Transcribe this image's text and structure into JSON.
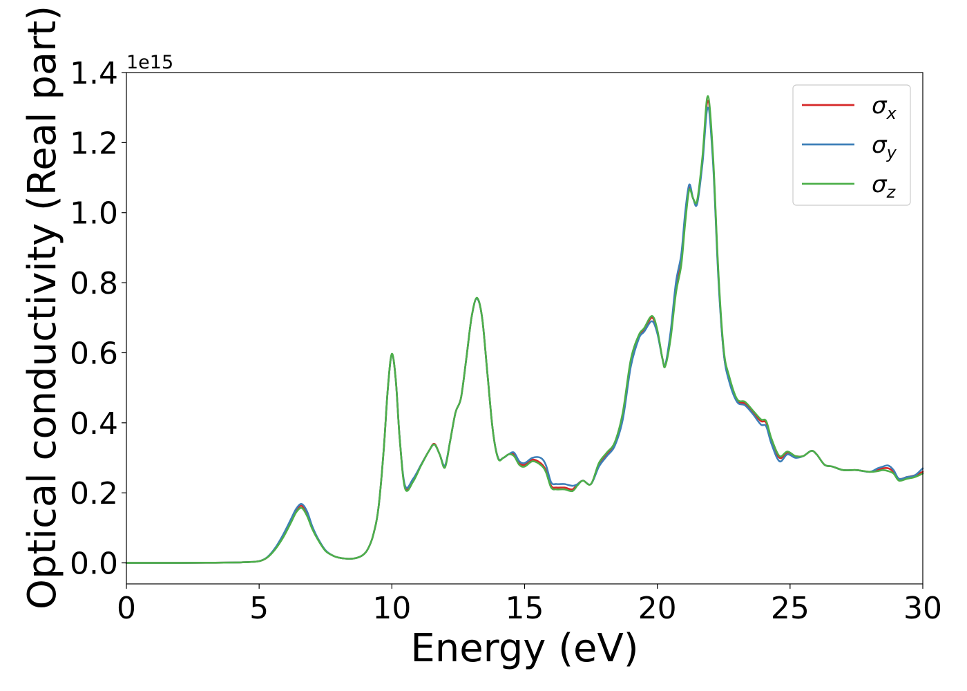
{
  "chart_data": {
    "type": "line",
    "title": "",
    "xlabel": "Energy (eV)",
    "ylabel": "Optical conductivity (Real part)",
    "y_offset_label": "1e15",
    "y_scale_factor": 1000000000000000.0,
    "xlim": [
      0,
      30
    ],
    "ylim": [
      -0.06,
      1.4
    ],
    "xticks": [
      0,
      5,
      10,
      15,
      20,
      25,
      30
    ],
    "xtick_labels": [
      "0",
      "5",
      "10",
      "15",
      "20",
      "25",
      "30"
    ],
    "yticks": [
      0.0,
      0.2,
      0.4,
      0.6,
      0.8,
      1.0,
      1.2,
      1.4
    ],
    "ytick_labels": [
      "0.0",
      "0.2",
      "0.4",
      "0.6",
      "0.8",
      "1.0",
      "1.2",
      "1.4"
    ],
    "grid": false,
    "legend_position": "top-right",
    "x": [
      0,
      1,
      2,
      3,
      4,
      4.5,
      5,
      5.3,
      5.6,
      5.9,
      6.2,
      6.4,
      6.6,
      6.8,
      7.0,
      7.2,
      7.5,
      7.8,
      8.0,
      8.3,
      8.6,
      8.9,
      9.1,
      9.3,
      9.5,
      9.7,
      9.85,
      10.0,
      10.15,
      10.3,
      10.5,
      10.8,
      11.1,
      11.4,
      11.6,
      11.8,
      12.0,
      12.2,
      12.4,
      12.6,
      12.8,
      13.0,
      13.2,
      13.4,
      13.6,
      13.8,
      14.0,
      14.2,
      14.4,
      14.6,
      14.8,
      15.0,
      15.3,
      15.6,
      15.8,
      16.0,
      16.2,
      16.5,
      16.8,
      17.0,
      17.2,
      17.5,
      17.8,
      18.1,
      18.4,
      18.7,
      19.0,
      19.3,
      19.5,
      19.8,
      20.0,
      20.2,
      20.3,
      20.5,
      20.7,
      20.9,
      21.05,
      21.2,
      21.35,
      21.5,
      21.7,
      21.9,
      22.1,
      22.3,
      22.5,
      22.7,
      23.0,
      23.3,
      23.6,
      23.9,
      24.1,
      24.3,
      24.6,
      24.9,
      25.2,
      25.5,
      25.8,
      26.0,
      26.3,
      26.6,
      27.0,
      27.5,
      28.0,
      28.3,
      28.5,
      28.7,
      28.9,
      29.1,
      29.4,
      29.7,
      30.0
    ],
    "series": [
      {
        "name": "σx",
        "color": "#d62728",
        "values": [
          0,
          0,
          0,
          0.0005,
          0.001,
          0.002,
          0.005,
          0.015,
          0.04,
          0.075,
          0.12,
          0.15,
          0.163,
          0.14,
          0.1,
          0.07,
          0.035,
          0.02,
          0.015,
          0.012,
          0.013,
          0.022,
          0.04,
          0.08,
          0.16,
          0.33,
          0.5,
          0.595,
          0.52,
          0.35,
          0.215,
          0.235,
          0.28,
          0.32,
          0.34,
          0.31,
          0.275,
          0.35,
          0.43,
          0.47,
          0.58,
          0.7,
          0.755,
          0.7,
          0.54,
          0.38,
          0.3,
          0.3,
          0.31,
          0.31,
          0.285,
          0.28,
          0.295,
          0.285,
          0.265,
          0.22,
          0.215,
          0.215,
          0.21,
          0.225,
          0.235,
          0.225,
          0.28,
          0.31,
          0.34,
          0.42,
          0.57,
          0.645,
          0.665,
          0.7,
          0.66,
          0.58,
          0.565,
          0.65,
          0.78,
          0.86,
          0.98,
          1.07,
          1.04,
          1.03,
          1.15,
          1.32,
          1.15,
          0.82,
          0.6,
          0.53,
          0.465,
          0.455,
          0.43,
          0.405,
          0.4,
          0.35,
          0.3,
          0.315,
          0.305,
          0.305,
          0.32,
          0.31,
          0.28,
          0.275,
          0.265,
          0.265,
          0.26,
          0.265,
          0.27,
          0.27,
          0.26,
          0.24,
          0.245,
          0.25,
          0.26
        ]
      },
      {
        "name": "σy",
        "color": "#3d7fb8",
        "values": [
          0,
          0,
          0,
          0.0005,
          0.001,
          0.002,
          0.005,
          0.016,
          0.042,
          0.08,
          0.125,
          0.155,
          0.168,
          0.148,
          0.105,
          0.072,
          0.036,
          0.02,
          0.015,
          0.012,
          0.013,
          0.022,
          0.04,
          0.08,
          0.16,
          0.33,
          0.5,
          0.595,
          0.52,
          0.35,
          0.22,
          0.24,
          0.28,
          0.32,
          0.338,
          0.31,
          0.278,
          0.35,
          0.43,
          0.47,
          0.58,
          0.7,
          0.755,
          0.7,
          0.54,
          0.38,
          0.3,
          0.3,
          0.31,
          0.315,
          0.29,
          0.285,
          0.3,
          0.3,
          0.28,
          0.23,
          0.225,
          0.225,
          0.22,
          0.225,
          0.235,
          0.225,
          0.275,
          0.305,
          0.335,
          0.41,
          0.56,
          0.64,
          0.66,
          0.69,
          0.655,
          0.58,
          0.565,
          0.66,
          0.8,
          0.88,
          1.0,
          1.08,
          1.04,
          1.025,
          1.14,
          1.3,
          1.14,
          0.81,
          0.6,
          0.52,
          0.46,
          0.45,
          0.425,
          0.395,
          0.39,
          0.34,
          0.29,
          0.31,
          0.3,
          0.305,
          0.32,
          0.31,
          0.28,
          0.275,
          0.265,
          0.265,
          0.26,
          0.27,
          0.275,
          0.278,
          0.265,
          0.24,
          0.245,
          0.25,
          0.27
        ]
      },
      {
        "name": "σz",
        "color": "#4daf4a",
        "values": [
          0,
          0,
          0,
          0.0005,
          0.001,
          0.002,
          0.005,
          0.015,
          0.038,
          0.072,
          0.115,
          0.145,
          0.157,
          0.135,
          0.097,
          0.068,
          0.034,
          0.02,
          0.015,
          0.012,
          0.013,
          0.022,
          0.04,
          0.08,
          0.16,
          0.33,
          0.5,
          0.597,
          0.52,
          0.35,
          0.212,
          0.232,
          0.278,
          0.32,
          0.338,
          0.31,
          0.272,
          0.35,
          0.43,
          0.47,
          0.58,
          0.7,
          0.757,
          0.7,
          0.54,
          0.38,
          0.298,
          0.3,
          0.31,
          0.305,
          0.28,
          0.275,
          0.29,
          0.28,
          0.26,
          0.215,
          0.21,
          0.21,
          0.205,
          0.222,
          0.235,
          0.225,
          0.285,
          0.315,
          0.345,
          0.43,
          0.58,
          0.65,
          0.67,
          0.705,
          0.665,
          0.58,
          0.562,
          0.64,
          0.77,
          0.85,
          0.97,
          1.065,
          1.04,
          1.035,
          1.16,
          1.333,
          1.16,
          0.83,
          0.61,
          0.535,
          0.468,
          0.46,
          0.435,
          0.41,
          0.405,
          0.355,
          0.305,
          0.318,
          0.305,
          0.305,
          0.32,
          0.31,
          0.28,
          0.275,
          0.265,
          0.265,
          0.26,
          0.262,
          0.265,
          0.262,
          0.255,
          0.235,
          0.24,
          0.245,
          0.255
        ]
      }
    ]
  }
}
